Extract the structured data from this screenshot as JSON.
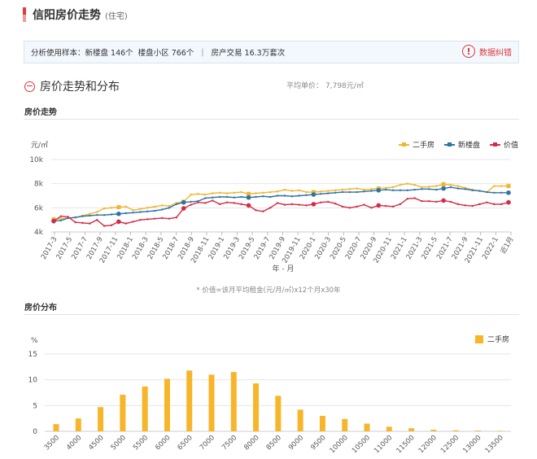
{
  "page": {
    "title": "信阳房价走势",
    "title_tag": "(住宅)"
  },
  "sample_info": {
    "label": "分析使用样本：",
    "new_homes": "新楼盘 146个",
    "communities": "楼盘小区 766个",
    "separator": "|",
    "transactions": "房产交易 16.3万套次",
    "report_label": "数据纠错",
    "report_icon": "exclamation-circle-icon"
  },
  "section": {
    "title": "房价走势和分布",
    "avg_label": "平均单价：",
    "avg_value": "7,798元/㎡"
  },
  "trend_title": "房价走势",
  "distribution_title": "房价分布",
  "formula_note": "* 价值=该月平均租金(元/月/㎡)x12个月x30年",
  "chart_data": [
    {
      "type": "line",
      "unit_label": "元/㎡",
      "xlabel": "年 - 月",
      "ylabel": "",
      "ylim": [
        4000,
        10000
      ],
      "yticks": [
        4000,
        6000,
        8000,
        10000
      ],
      "ytick_labels": [
        "4k",
        "6k",
        "8k",
        "10k"
      ],
      "grid": true,
      "legend_position": "top-right",
      "tick_labels": [
        "2017-3",
        "2017-5",
        "2017-7",
        "2017-9",
        "2017-11",
        "2018-1",
        "2018-3",
        "2018-5",
        "2018-7",
        "2018-9",
        "2018-11",
        "2019-1",
        "2019-3",
        "2019-5",
        "2019-7",
        "2019-9",
        "2019-11",
        "2020-1",
        "2020-3",
        "2020-5",
        "2020-7",
        "2020-9",
        "2020-11",
        "2021-1",
        "2021-3",
        "2021-5",
        "2021-7",
        "2021-9",
        "2021-11",
        "2022-1",
        "近1月"
      ],
      "colors": {
        "二手房": "#f0b62e",
        "新楼盘": "#2c73a8",
        "价值": "#d42b46"
      },
      "series": [
        {
          "name": "二手房",
          "values": [
            5050,
            5100,
            5150,
            5200,
            5350,
            5500,
            5650,
            5950,
            6000,
            6050,
            6100,
            5800,
            5900,
            6000,
            6100,
            6200,
            6150,
            6400,
            6500,
            7100,
            7150,
            7100,
            7200,
            7250,
            7200,
            7250,
            7300,
            7150,
            7200,
            7250,
            7300,
            7350,
            7500,
            7400,
            7450,
            7300,
            7300,
            7350,
            7400,
            7450,
            7500,
            7550,
            7600,
            7500,
            7550,
            7600,
            7650,
            7700,
            7900,
            8000,
            7900,
            7700,
            7750,
            7800,
            7950,
            7900,
            7800,
            7650,
            7500,
            7400,
            7300,
            7800,
            7800,
            7800
          ]
        },
        {
          "name": "新楼盘",
          "values": [
            4900,
            4950,
            5150,
            5200,
            5300,
            5350,
            5400,
            5400,
            5450,
            5500,
            5550,
            5600,
            5650,
            5700,
            5750,
            5850,
            6000,
            6300,
            6450,
            6500,
            6550,
            6800,
            6850,
            6900,
            6900,
            6850,
            6900,
            6850,
            6900,
            6950,
            6900,
            7000,
            7000,
            6950,
            7000,
            7050,
            7100,
            7150,
            7200,
            7250,
            7300,
            7300,
            7300,
            7350,
            7400,
            7450,
            7500,
            7450,
            7450,
            7450,
            7500,
            7550,
            7550,
            7500,
            7600,
            7700,
            7600,
            7550,
            7450,
            7400,
            7300,
            7250,
            7250,
            7250
          ]
        },
        {
          "name": "价值",
          "values": [
            4900,
            5300,
            5250,
            4800,
            4750,
            4700,
            5000,
            4500,
            4550,
            4850,
            4700,
            4850,
            5000,
            5050,
            5100,
            5150,
            5100,
            5200,
            5950,
            6250,
            6450,
            6400,
            6600,
            6300,
            6450,
            6400,
            6300,
            6200,
            5800,
            5700,
            6000,
            6400,
            6250,
            6300,
            6250,
            6200,
            6300,
            6450,
            6500,
            6350,
            6100,
            6000,
            6100,
            6250,
            6000,
            6200,
            6150,
            6100,
            6300,
            6750,
            6800,
            6550,
            6550,
            6500,
            6600,
            6500,
            6300,
            6200,
            6150,
            6300,
            6450,
            6300,
            6300,
            6450
          ]
        }
      ]
    },
    {
      "type": "bar",
      "unit_label": "%",
      "xlabel": "",
      "ylabel": "",
      "ylim": [
        0,
        15
      ],
      "yticks": [
        0,
        5,
        10,
        15
      ],
      "grid": true,
      "legend_position": "top-right",
      "color": "#f7b62a",
      "categories": [
        "3500",
        "4000",
        "4500",
        "5000",
        "5500",
        "6000",
        "6500",
        "7000",
        "7500",
        "8000",
        "8500",
        "9000",
        "9500",
        "10000",
        "10500",
        "11000",
        "11500",
        "12000",
        "12500",
        "13000",
        "13500"
      ],
      "series": [
        {
          "name": "二手房",
          "values": [
            1.4,
            2.5,
            4.7,
            7.1,
            8.7,
            10.2,
            11.8,
            11.0,
            11.5,
            9.3,
            6.9,
            4.2,
            3.0,
            2.4,
            1.5,
            0.9,
            0.6,
            0.3,
            0.2,
            0.15,
            0.1
          ]
        }
      ]
    }
  ]
}
